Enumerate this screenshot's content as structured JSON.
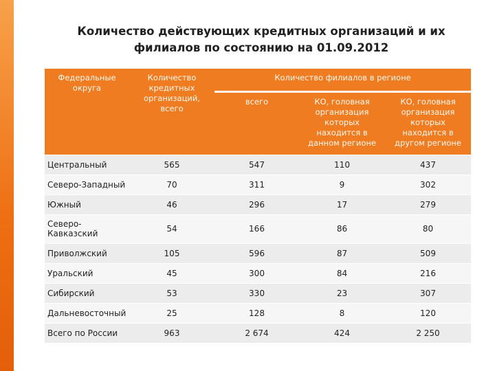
{
  "title": [
    "Количество действующих кредитных организаций и их",
    "филиалов по состоянию на 01.09.2012"
  ],
  "table": {
    "header": {
      "district": "Федеральные округа",
      "org_count": "Количество кредитных организаций, всего",
      "branches": "Количество филиалов в регионе",
      "total": "всего",
      "home": "КО, головная организация которых находится в данном регионе",
      "other": "КО, головная организация которых находится в другом регионе"
    },
    "rows": [
      [
        "Центральный",
        "565",
        "547",
        "110",
        "437"
      ],
      [
        "Северо-Западный",
        "70",
        "311",
        "9",
        "302"
      ],
      [
        "Южный",
        "46",
        "296",
        "17",
        "279"
      ],
      [
        "Северо-Кавказский",
        "54",
        "166",
        "86",
        "80"
      ],
      [
        "Приволжский",
        "105",
        "596",
        "87",
        "509"
      ],
      [
        "Уральский",
        "45",
        "300",
        "84",
        "216"
      ],
      [
        "Сибирский",
        "53",
        "330",
        "23",
        "307"
      ],
      [
        "Дальневосточный",
        "25",
        "128",
        "8",
        "120"
      ],
      [
        "Всего по России",
        "963",
        "2 674",
        "424",
        "2 250"
      ]
    ]
  }
}
